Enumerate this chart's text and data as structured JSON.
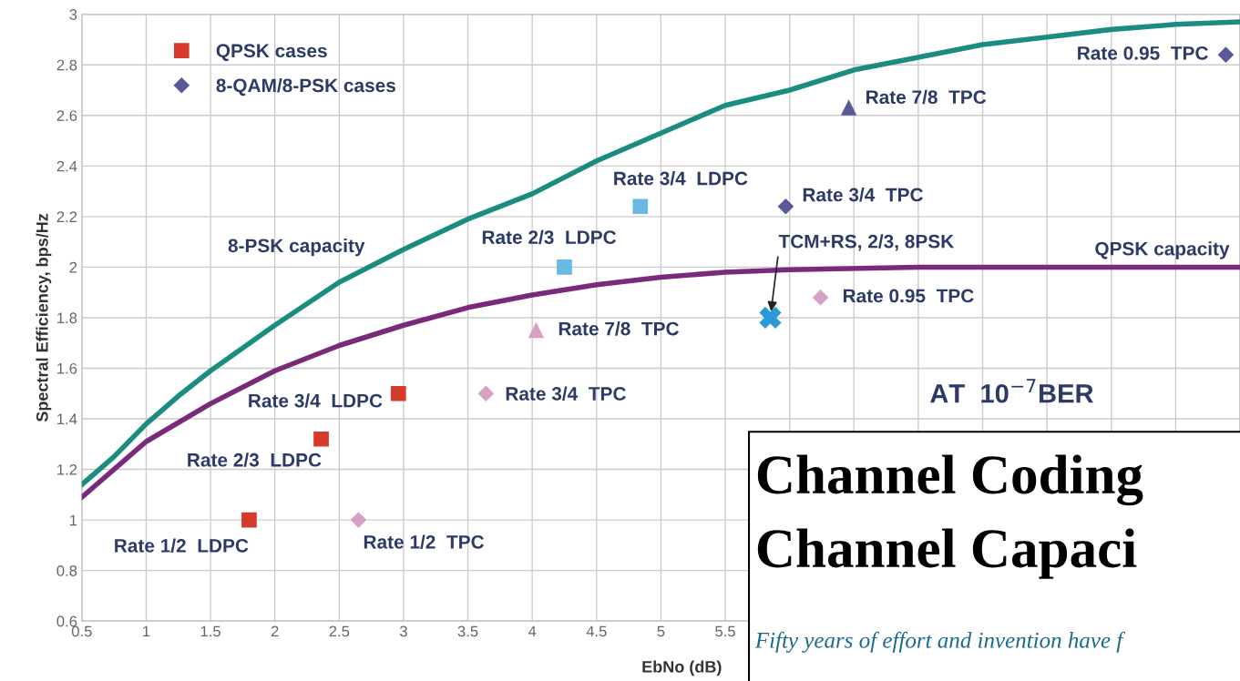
{
  "chart_data": {
    "type": "scatter",
    "xlabel": "EbNo (dB)",
    "ylabel": "Spectral Efficiency, bps/Hz",
    "xlim": [
      0.5,
      9.5
    ],
    "ylim": [
      0.6,
      3
    ],
    "xticks": [
      0.5,
      1,
      1.5,
      2,
      2.5,
      3,
      3.5,
      4,
      4.5,
      5,
      5.5,
      {
        "value": 6,
        "label": null
      },
      {
        "value": 6.5,
        "label": null
      },
      {
        "value": 7,
        "label": null
      },
      {
        "value": 7.5,
        "label": null
      },
      {
        "value": 8,
        "label": null
      },
      {
        "value": 8.5,
        "label": null
      },
      {
        "value": 9,
        "label": null
      },
      {
        "value": 9.5,
        "label": null
      }
    ],
    "yticks": [
      0.6,
      0.8,
      1,
      1.2,
      1.4,
      1.6,
      1.8,
      2,
      2.2,
      2.4,
      2.6,
      2.8,
      3
    ],
    "grid": true,
    "legend": "top left",
    "series": [
      {
        "type": "line",
        "color": "#1a8c80",
        "x": [
          0.5,
          0.75,
          1,
          1.25,
          1.5,
          1.75,
          2,
          2.5,
          3,
          3.5,
          4,
          4.5,
          5,
          5.5,
          6,
          6.5,
          7,
          7.5,
          8,
          8.5,
          9,
          9.5
        ],
        "values": [
          1.14,
          1.25,
          1.38,
          1.49,
          1.59,
          1.68,
          1.77,
          1.94,
          2.07,
          2.19,
          2.29,
          2.42,
          2.53,
          2.64,
          2.7,
          2.78,
          2.83,
          2.88,
          2.91,
          2.94,
          2.96,
          2.97
        ]
      },
      {
        "type": "line",
        "color": "#7a2a7a",
        "x": [
          0.5,
          1,
          1.5,
          2,
          2.5,
          3,
          3.5,
          4,
          4.5,
          5,
          5.5,
          6,
          7,
          8,
          9.5
        ],
        "values": [
          1.09,
          1.31,
          1.46,
          1.59,
          1.69,
          1.77,
          1.84,
          1.89,
          1.93,
          1.96,
          1.98,
          1.99,
          2.0,
          2.0,
          2.0
        ]
      },
      {
        "color": "#d9a0c6",
        "marker": "diamond",
        "x": [
          2.65,
          3.64,
          6.24
        ],
        "values": [
          1.0,
          1.5,
          1.88
        ]
      },
      {
        "name": "QPSK cases",
        "color": "#d63a2a",
        "marker": "square",
        "x": [
          1.8,
          2.36,
          2.96
        ],
        "values": [
          1.0,
          1.32,
          1.5
        ]
      },
      {
        "color": "#d9a0c6",
        "marker": "triangle",
        "x": [
          4.03
        ],
        "values": [
          1.75
        ]
      },
      {
        "color": "#6ab8e4",
        "marker": "square",
        "x": [
          4.25,
          4.84
        ],
        "values": [
          2.0,
          2.24
        ]
      },
      {
        "name": "8-QAM/8-PSK cases",
        "color": "#5a5a9a",
        "marker": "diamond",
        "x": [
          5.97,
          9.39
        ],
        "values": [
          2.24,
          2.84
        ]
      },
      {
        "color": "#5a5a9a",
        "marker": "triangle",
        "x": [
          6.46
        ],
        "values": [
          2.63
        ]
      },
      {
        "color": "#2a9ad6",
        "marker": "cross",
        "x": [
          5.85
        ],
        "values": [
          1.8
        ]
      }
    ],
    "annotations": [
      "Rate 1/2  LDPC",
      "Rate 2/3  LDPC",
      "Rate 3/4  LDPC",
      {
        "text": "Rate 1/2  TPC",
        "x": 2.65,
        "y": 1.0
      },
      {
        "text": "Rate 3/4  TPC",
        "x": 3.64,
        "y": 1.5
      },
      {
        "text": "Rate 7/8  TPC",
        "x": 4.03,
        "y": 1.75
      },
      {
        "text": "Rate 0.95  TPC",
        "x": 6.24,
        "y": 1.88
      },
      {
        "text": "Rate 2/3  LDPC",
        "x": 4.25,
        "y": 2.0
      },
      {
        "text": "Rate 3/4  LDPC",
        "x": 4.84,
        "y": 2.24
      },
      {
        "text": "Rate 3/4  TPC",
        "x": 5.97,
        "y": 2.24
      },
      {
        "text": "Rate 7/8  TPC",
        "x": 6.46,
        "y": 2.63
      },
      {
        "text": "Rate 0.95  TPC",
        "x": 9.39,
        "y": 2.84
      },
      {
        "text": "TCM+RS, 2/3, 8PSK",
        "x": 5.85,
        "y": 1.8
      },
      "8-PSK capacity",
      "QPSK capacity",
      "AT  10$^{−7}$BER",
      "Channel Coding",
      "Channel Capaci",
      "Fifty years of effort and invention have f"
    ]
  }
}
